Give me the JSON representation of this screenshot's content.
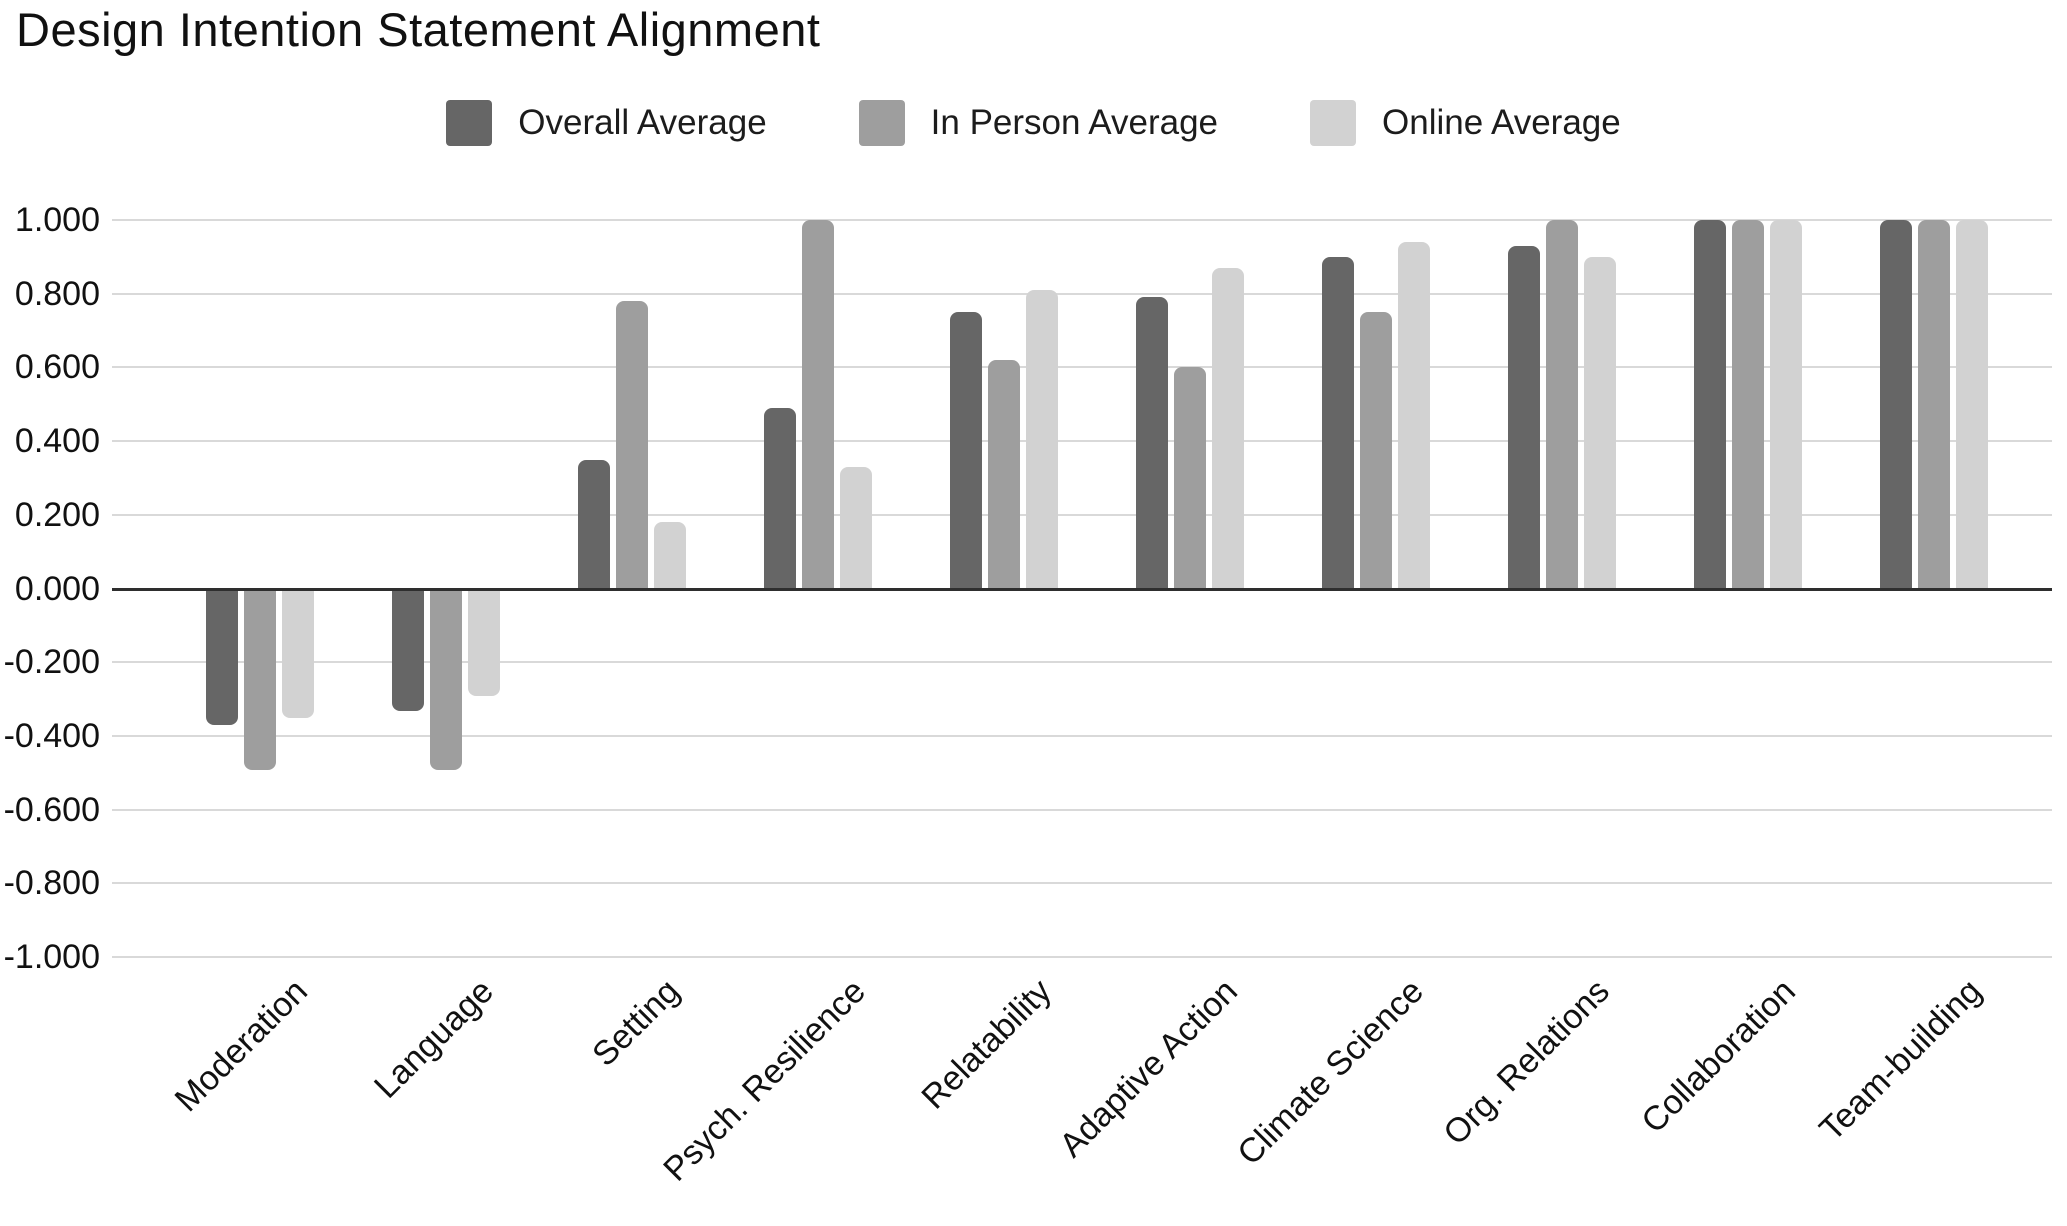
{
  "title": "Design Intention Statement Alignment",
  "chart_data": {
    "type": "bar",
    "title": "Design Intention Statement Alignment",
    "categories": [
      "Moderation",
      "Language",
      "Setting",
      "Psych. Resilience",
      "Relatability",
      "Adaptive Action",
      "Climate Science",
      "Org. Relations",
      "Collaboration",
      "Team-building"
    ],
    "series": [
      {
        "name": "Overall Average",
        "color": "#666666",
        "values": [
          -0.37,
          -0.33,
          0.35,
          0.49,
          0.75,
          0.79,
          0.9,
          0.93,
          1.0,
          1.0
        ]
      },
      {
        "name": "In Person Average",
        "color": "#9e9e9e",
        "values": [
          -0.49,
          -0.49,
          0.78,
          1.0,
          0.62,
          0.6,
          0.75,
          1.0,
          1.0,
          1.0
        ]
      },
      {
        "name": "Online Average",
        "color": "#d2d2d2",
        "values": [
          -0.35,
          -0.29,
          0.18,
          0.33,
          0.81,
          0.87,
          0.94,
          0.9,
          1.0,
          1.0
        ]
      }
    ],
    "xlabel": "",
    "ylabel": "",
    "ylim": [
      -1.0,
      1.0
    ],
    "ytick_step": 0.2,
    "yticks": [
      "1.000",
      "0.800",
      "0.600",
      "0.400",
      "0.200",
      "0.000",
      "-0.200",
      "-0.400",
      "-0.600",
      "-0.800",
      "-1.000"
    ],
    "grid": true,
    "legend_position": "top",
    "colors": {
      "gridline": "#d9d9d9",
      "zero_line": "#2e2e2e",
      "text": "#111111",
      "background": "#ffffff"
    }
  }
}
